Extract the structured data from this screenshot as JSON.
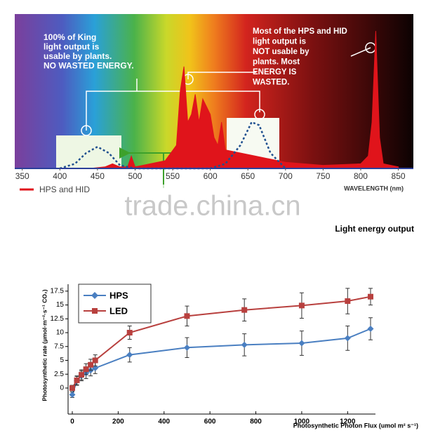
{
  "chart_data": [
    {
      "type": "spectrum",
      "xlabel": "WAVELENGTH (nm)",
      "xlim": [
        340,
        870
      ],
      "ylim": [
        0,
        1
      ],
      "xticks": [
        350,
        400,
        450,
        500,
        550,
        600,
        650,
        700,
        750,
        800,
        850
      ],
      "annotations": [
        {
          "lines": [
            "100% of  King",
            "light output is",
            "usable by plants.",
            "NO WASTED ENERGY."
          ]
        },
        {
          "lines": [
            "Most of the HPS and HID",
            "light output is",
            "NOT usable by",
            "plants. Most",
            "ENERGY IS",
            "WASTED."
          ]
        }
      ],
      "watermark": "trade.china.cn",
      "series": [
        {
          "name": "HPS and HID",
          "color": "#e0141b",
          "style": "area",
          "x": [
            350,
            440,
            460,
            470,
            480,
            490,
            495,
            500,
            510,
            540,
            555,
            560,
            565,
            570,
            575,
            580,
            585,
            590,
            595,
            600,
            605,
            610,
            615,
            620,
            640,
            660,
            680,
            700,
            750,
            800,
            810,
            815,
            820,
            825,
            830,
            850
          ],
          "values": [
            0,
            0,
            0.01,
            0.03,
            0.01,
            0.01,
            0.08,
            0.01,
            0.02,
            0.05,
            0.15,
            0.5,
            0.66,
            0.3,
            0.35,
            0.48,
            0.3,
            0.45,
            0.4,
            0.35,
            0.2,
            0.15,
            0.3,
            0.12,
            0.1,
            0.08,
            0.06,
            0.04,
            0.02,
            0.03,
            0.08,
            0.3,
            0.89,
            0.2,
            0.03,
            0.01
          ]
        },
        {
          "name": null,
          "color": "#1f4f8f",
          "style": "dotted",
          "x": [
            400,
            420,
            435,
            450,
            465,
            480,
            500,
            600,
            620,
            640,
            655,
            665,
            680,
            700
          ],
          "values": [
            0,
            0.03,
            0.1,
            0.14,
            0.1,
            0.02,
            0,
            0,
            0.03,
            0.15,
            0.3,
            0.28,
            0.1,
            0
          ]
        }
      ]
    },
    {
      "type": "line",
      "title": "Light energy output",
      "xlabel": "Photosynthetic Photon Flux (umol m² s⁻¹)",
      "ylabel": "Photosynthetic rate (μmol·m⁻²·s⁻¹ CO₂)",
      "xlim": [
        0,
        1300
      ],
      "ylim": [
        -5,
        19
      ],
      "xticks": [
        0,
        200,
        400,
        600,
        800,
        1000,
        1200
      ],
      "yticks": [
        0,
        2.5,
        5,
        7.5,
        10,
        12.5,
        15,
        17.5
      ],
      "legend": "top-left",
      "x": [
        0,
        20,
        40,
        60,
        80,
        100,
        250,
        500,
        750,
        1000,
        1200,
        1300
      ],
      "series": [
        {
          "name": "HPS",
          "color": "#4a7fc1",
          "marker": "diamond",
          "values": [
            -1.2,
            1.3,
            2.2,
            2.7,
            3.2,
            3.6,
            6,
            7.3,
            7.8,
            8.1,
            9,
            10.7
          ],
          "errors": [
            0.5,
            0.8,
            0.9,
            1,
            1,
            1,
            1.3,
            1.8,
            2,
            2.2,
            2.2,
            2
          ]
        },
        {
          "name": "LED",
          "color": "#b8403e",
          "marker": "square",
          "values": [
            0,
            1.4,
            2.4,
            3.4,
            4.2,
            5,
            10,
            13,
            14.1,
            14.9,
            15.7,
            16.5
          ],
          "errors": [
            0.5,
            0.8,
            0.9,
            1,
            1,
            1,
            1.2,
            1.8,
            2,
            2.3,
            2.3,
            1.5
          ]
        }
      ]
    }
  ]
}
